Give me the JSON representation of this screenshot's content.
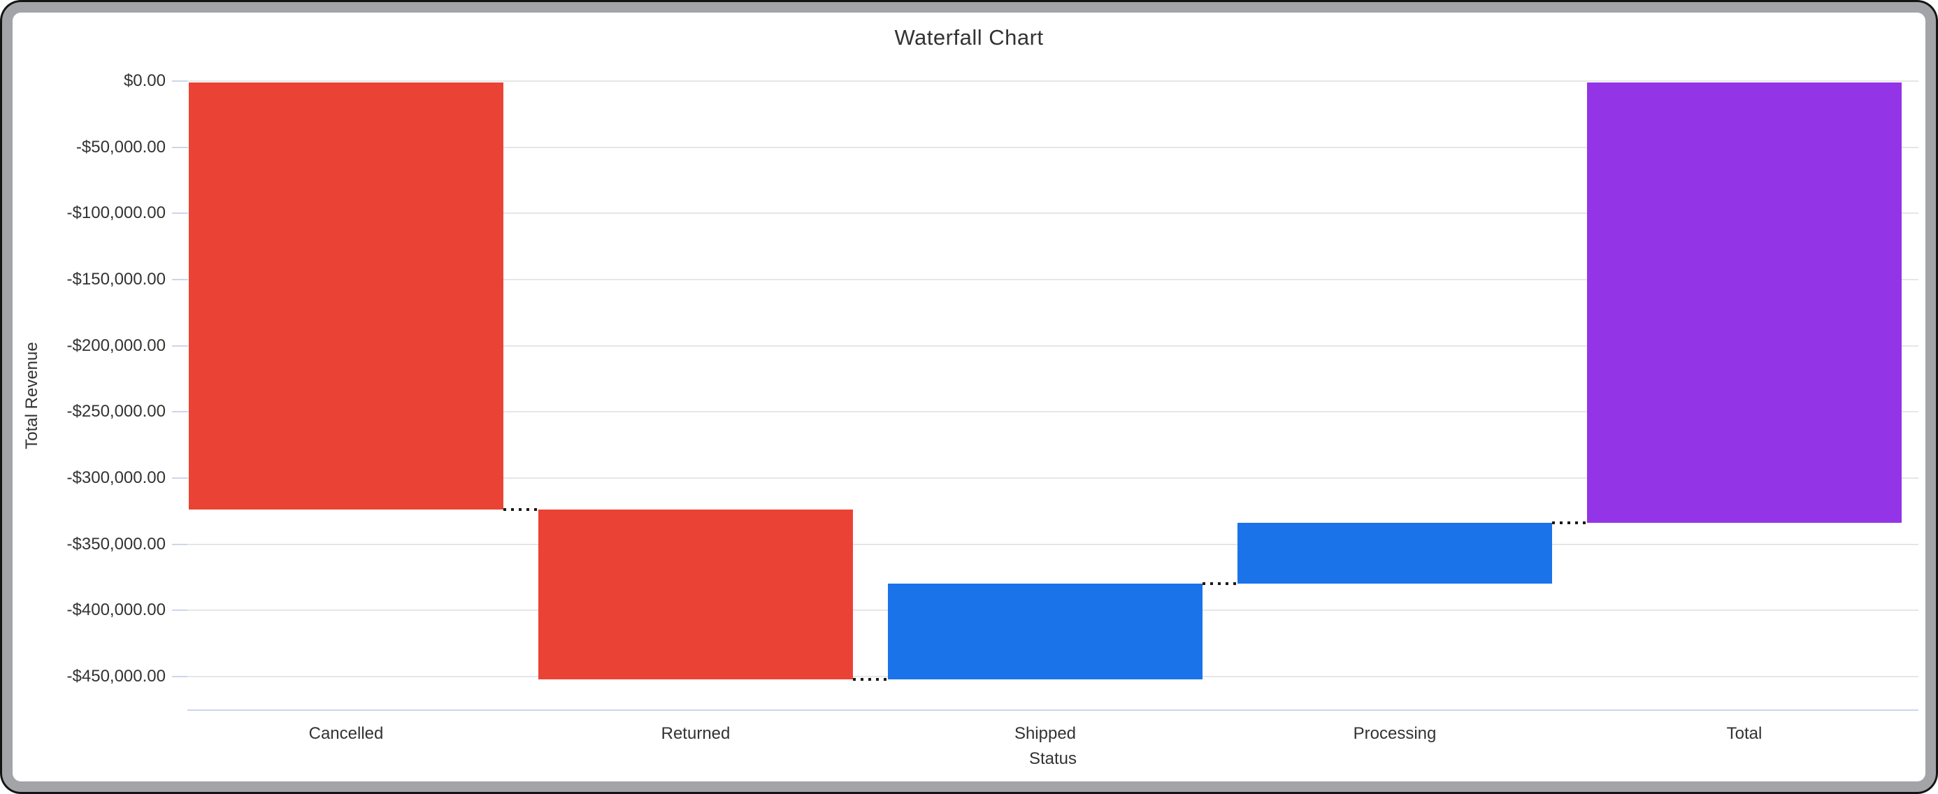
{
  "chart_data": {
    "type": "bar",
    "subtype": "waterfall",
    "title": "Waterfall Chart",
    "xlabel": "Status",
    "ylabel": "Total Revenue",
    "categories": [
      "Cancelled",
      "Returned",
      "Shipped",
      "Processing",
      "Total"
    ],
    "bars": [
      {
        "category": "Cancelled",
        "delta": -324000,
        "start": 0,
        "end": -324000,
        "role": "decrease"
      },
      {
        "category": "Returned",
        "delta": -128000,
        "start": -324000,
        "end": -452000,
        "role": "decrease"
      },
      {
        "category": "Shipped",
        "delta": 72000,
        "start": -452000,
        "end": -380000,
        "role": "increase"
      },
      {
        "category": "Processing",
        "delta": 46000,
        "start": -380000,
        "end": -334000,
        "role": "increase"
      },
      {
        "category": "Total",
        "delta": -334000,
        "start": 0,
        "end": -334000,
        "role": "total"
      }
    ],
    "y_axis": {
      "max": 0,
      "min": -450000,
      "tick_interval": 50000,
      "tick_values": [
        0,
        -50000,
        -100000,
        -150000,
        -200000,
        -250000,
        -300000,
        -350000,
        -400000,
        -450000
      ],
      "tick_labels": [
        "$0.00",
        "-$50,000.00",
        "-$100,000.00",
        "-$150,000.00",
        "-$200,000.00",
        "-$250,000.00",
        "-$300,000.00",
        "-$350,000.00",
        "-$400,000.00",
        "-$450,000.00"
      ]
    },
    "legend": "none",
    "grid": true,
    "connector_style": "dotted",
    "colors": {
      "decrease": "#EA4335",
      "increase": "#1A73E8",
      "total": "#9334E6",
      "gridline": "#E6E6E6",
      "axis_line": "#CCD6EB",
      "tick": "#CCD6EB",
      "connector": "#1A1A1A",
      "text": "#333333"
    }
  }
}
